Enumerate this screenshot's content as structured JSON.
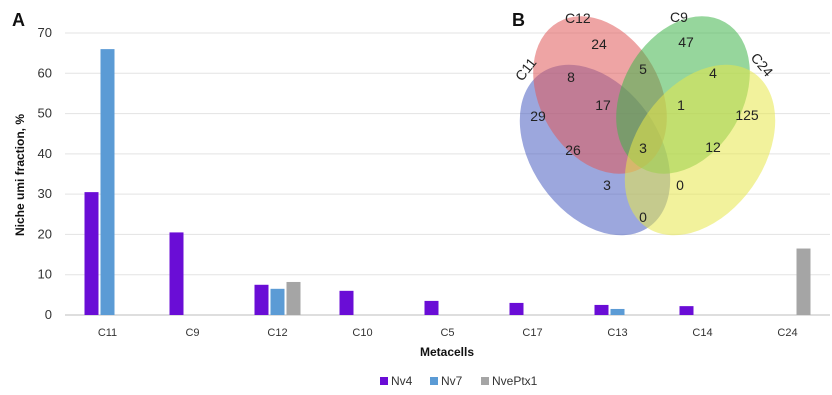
{
  "chart_data": [
    {
      "type": "bar",
      "panel_label": "A",
      "title": "",
      "xlabel": "Metacells",
      "ylabel": "Niche umi fraction, %",
      "ylim": [
        0,
        70
      ],
      "yticks": [
        0,
        10,
        20,
        30,
        40,
        50,
        60,
        70
      ],
      "grid": true,
      "legend": "bottom",
      "categories": [
        "C11",
        "C9",
        "C12",
        "C10",
        "C5",
        "C17",
        "C13",
        "C14",
        "C24"
      ],
      "series": [
        {
          "name": "Nv4",
          "color": "#6a0dd6",
          "values": [
            30.5,
            20.5,
            7.5,
            6,
            3.5,
            3,
            2.5,
            2.2,
            0
          ]
        },
        {
          "name": "Nv7",
          "color": "#5b9bd5",
          "values": [
            66,
            0,
            6.5,
            0,
            0,
            0,
            1.5,
            0,
            0
          ]
        },
        {
          "name": "NvePtx1",
          "color": "#a5a5a5",
          "values": [
            0,
            0,
            8.2,
            0,
            0,
            0,
            0,
            0,
            16.5
          ]
        }
      ]
    },
    {
      "type": "venn",
      "panel_label": "B",
      "sets": [
        {
          "name": "C11",
          "color": "#4a5fc1"
        },
        {
          "name": "C12",
          "color": "#e05a5a"
        },
        {
          "name": "C9",
          "color": "#3fb54a"
        },
        {
          "name": "C24",
          "color": "#e8e84a"
        }
      ],
      "regions": [
        {
          "sets": [
            "C11"
          ],
          "count": "29"
        },
        {
          "sets": [
            "C12"
          ],
          "count": "24"
        },
        {
          "sets": [
            "C9"
          ],
          "count": "47"
        },
        {
          "sets": [
            "C24"
          ],
          "count": "125"
        },
        {
          "sets": [
            "C11",
            "C12"
          ],
          "count": "8"
        },
        {
          "sets": [
            "C12",
            "C9"
          ],
          "count": "5"
        },
        {
          "sets": [
            "C9",
            "C24"
          ],
          "count": "4"
        },
        {
          "sets": [
            "C11",
            "C12",
            "C9"
          ],
          "count": "17"
        },
        {
          "sets": [
            "C12",
            "C9",
            "C24"
          ],
          "count": "1"
        },
        {
          "sets": [
            "C11",
            "C9"
          ],
          "count": "26"
        },
        {
          "sets": [
            "C11",
            "C12",
            "C9",
            "C24"
          ],
          "count": "3"
        },
        {
          "sets": [
            "C12",
            "C24"
          ],
          "count": "12"
        },
        {
          "sets": [
            "C11",
            "C9",
            "C24"
          ],
          "count": "3"
        },
        {
          "sets": [
            "C11",
            "C12",
            "C24"
          ],
          "count": "0"
        },
        {
          "sets": [
            "C11",
            "C24"
          ],
          "count": "0"
        }
      ]
    }
  ]
}
